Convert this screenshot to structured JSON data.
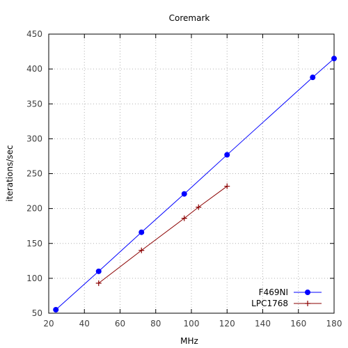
{
  "chart_data": {
    "type": "line",
    "title": "Coremark",
    "xlabel": "MHz",
    "ylabel": "iterations/sec",
    "xlim": [
      20,
      180
    ],
    "ylim": [
      50,
      450
    ],
    "xticks": [
      "20",
      "40",
      "60",
      "80",
      "100",
      "120",
      "140",
      "160",
      "180"
    ],
    "yticks": [
      "50",
      "100",
      "150",
      "200",
      "250",
      "300",
      "350",
      "400",
      "450"
    ],
    "grid": true,
    "legend_position": "bottom-right",
    "series": [
      {
        "name": "F469NI",
        "color": "#0000ff",
        "marker": "circle",
        "x": [
          24,
          48,
          72,
          96,
          120,
          168,
          180
        ],
        "y": [
          55,
          110,
          166,
          221,
          277,
          388,
          415
        ]
      },
      {
        "name": "LPC1768",
        "color": "#8b0000",
        "marker": "plus",
        "x": [
          48,
          72,
          96,
          104,
          120
        ],
        "y": [
          93,
          140,
          186,
          202,
          232
        ]
      }
    ]
  }
}
